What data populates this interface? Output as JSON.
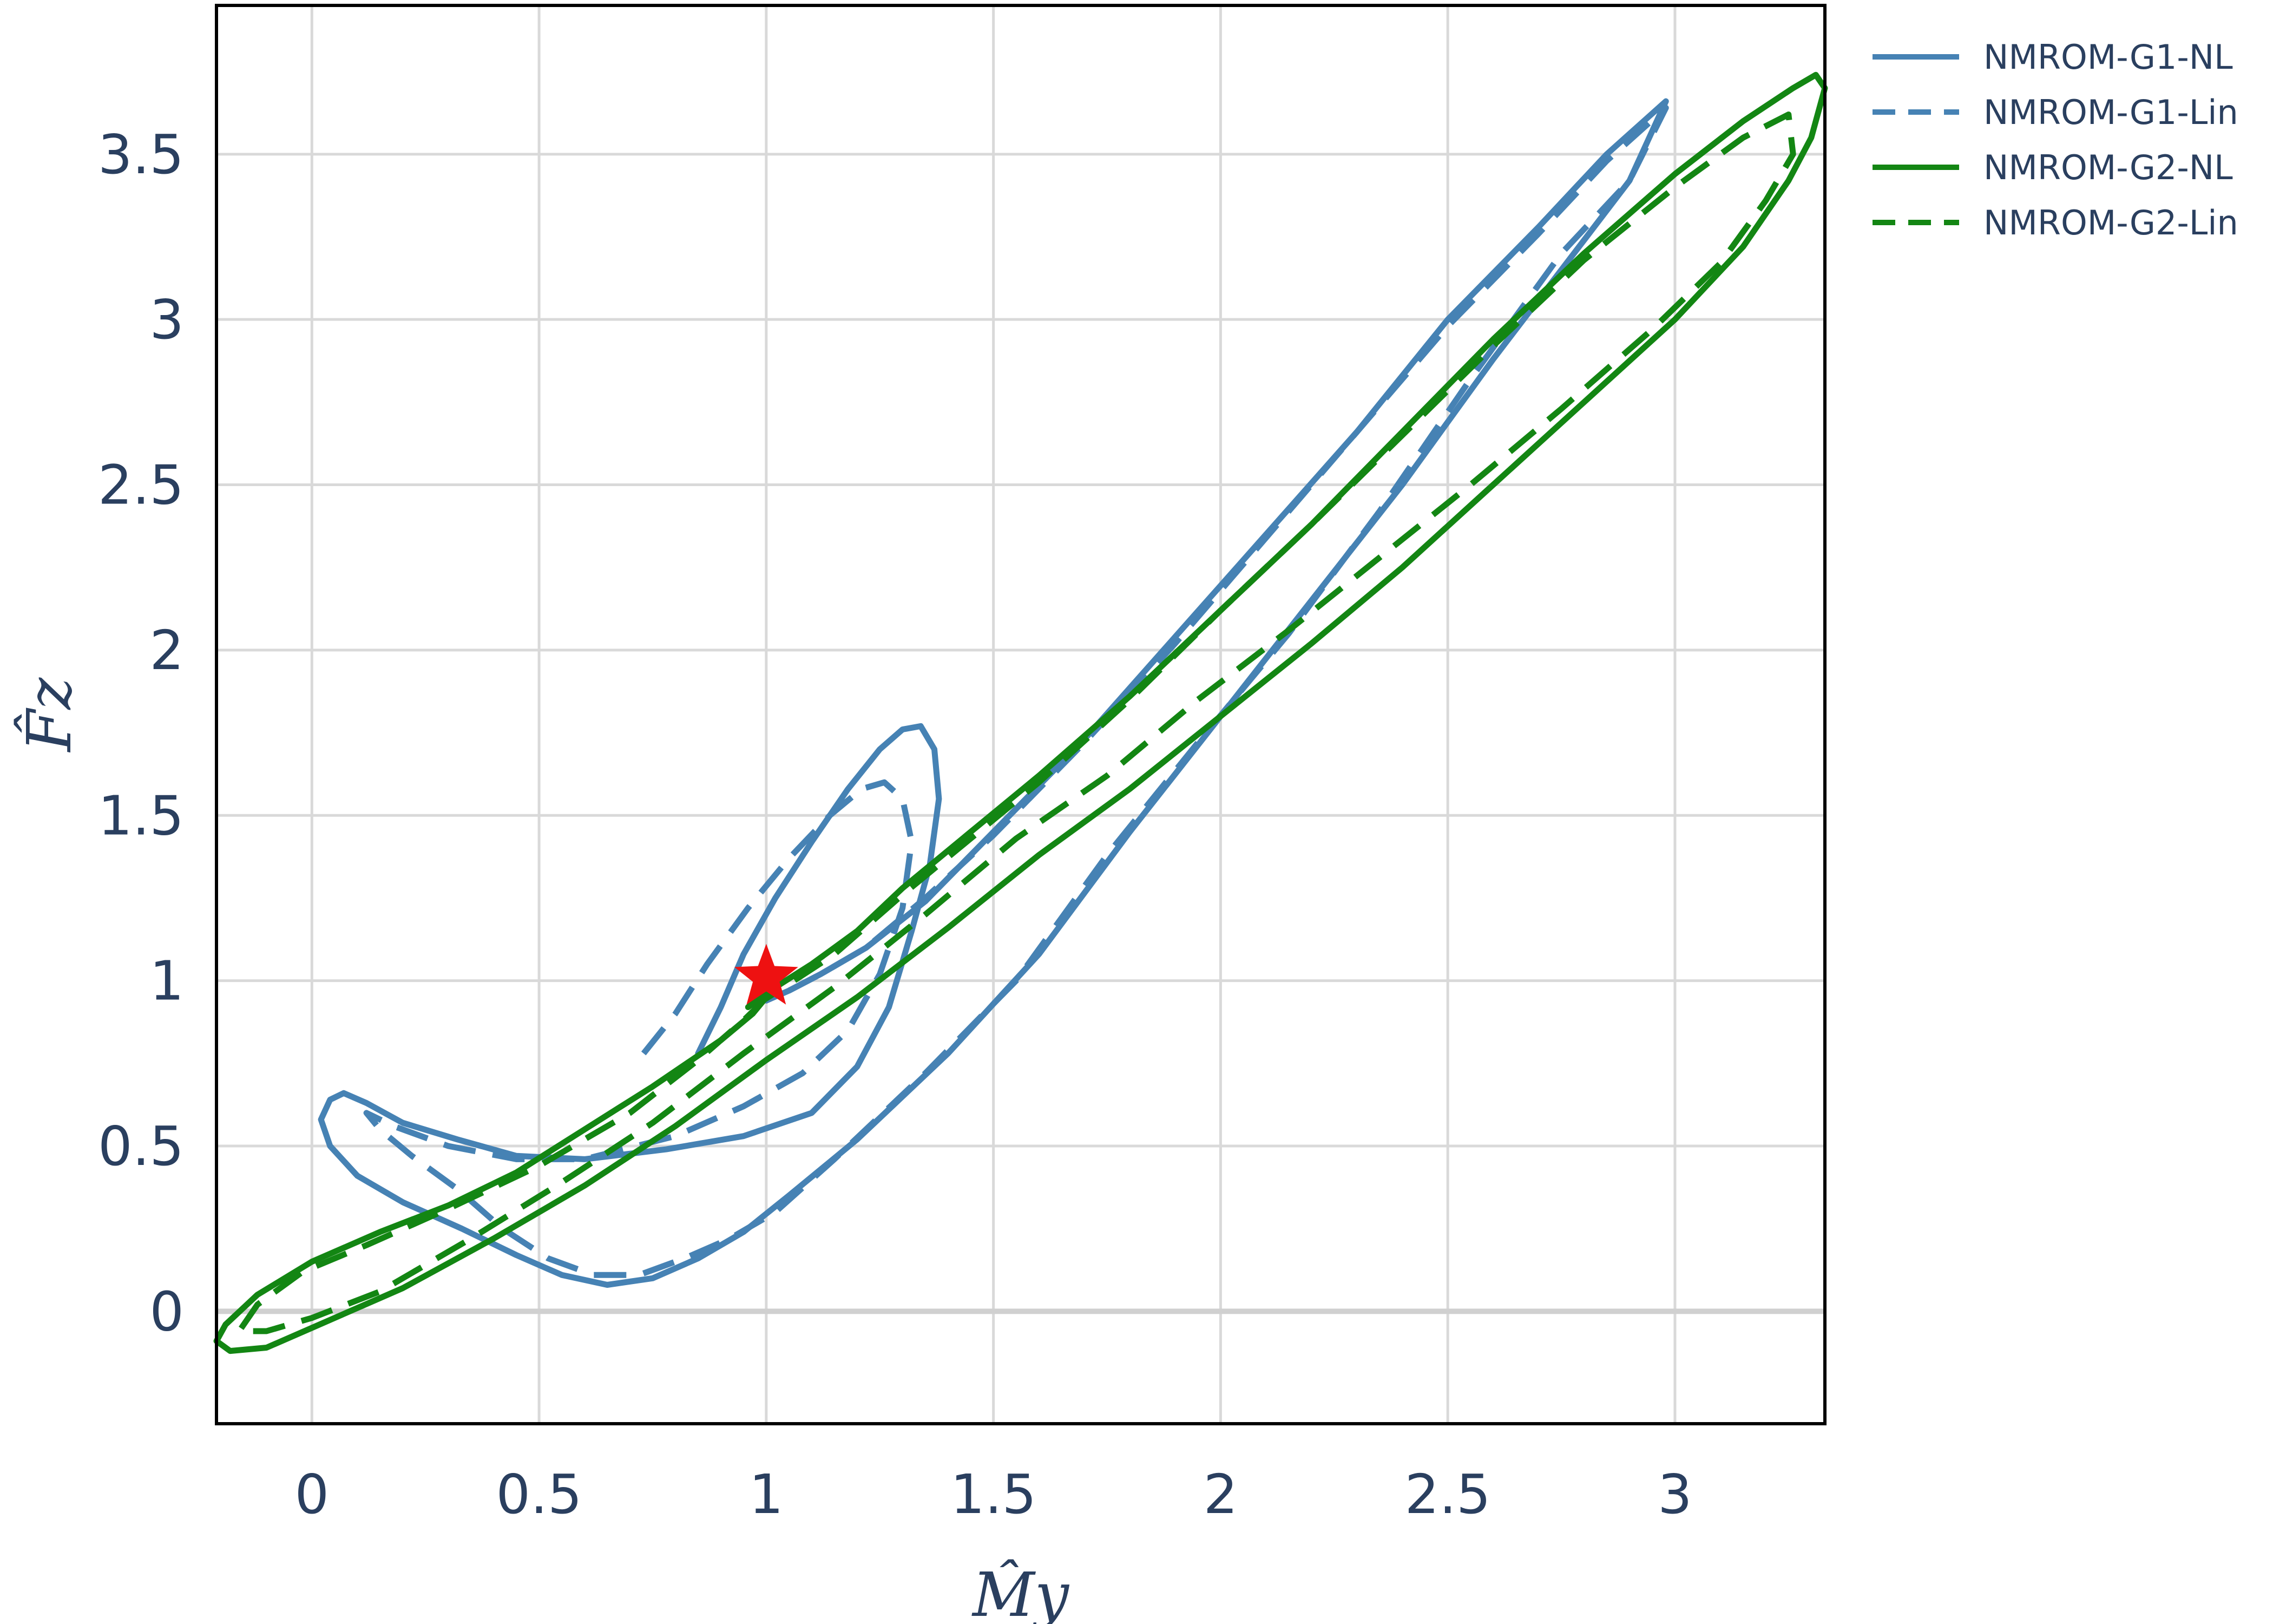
{
  "chart_data": {
    "type": "line",
    "xlabel": "M̂y",
    "ylabel": "F̂z",
    "xlim": [
      -0.21,
      3.33
    ],
    "ylim": [
      -0.34,
      3.95
    ],
    "x_ticks": [
      0,
      0.5,
      1,
      1.5,
      2,
      2.5,
      3
    ],
    "x_tick_labels": [
      "0",
      "0.5",
      "1",
      "1.5",
      "2",
      "2.5",
      "3"
    ],
    "y_ticks": [
      0,
      0.5,
      1,
      1.5,
      2,
      2.5,
      3,
      3.5
    ],
    "y_tick_labels": [
      "0",
      "0.5",
      "1",
      "1.5",
      "2",
      "2.5",
      "3",
      "3.5"
    ],
    "grid": true,
    "legend_position": "top-right, outside plot",
    "marker": {
      "x": 1.0,
      "y": 1.01,
      "shape": "star",
      "color": "#ee1111"
    },
    "series": [
      {
        "name": "NMROM-G1-NL",
        "color": "#4682b4",
        "dash": "solid",
        "points": [
          [
            0.85,
            0.78
          ],
          [
            0.9,
            0.92
          ],
          [
            0.95,
            1.08
          ],
          [
            1.02,
            1.25
          ],
          [
            1.1,
            1.42
          ],
          [
            1.18,
            1.58
          ],
          [
            1.25,
            1.7
          ],
          [
            1.3,
            1.76
          ],
          [
            1.34,
            1.77
          ],
          [
            1.37,
            1.7
          ],
          [
            1.38,
            1.55
          ],
          [
            1.36,
            1.35
          ],
          [
            1.32,
            1.15
          ],
          [
            1.27,
            0.92
          ],
          [
            1.2,
            0.74
          ],
          [
            1.1,
            0.6
          ],
          [
            0.95,
            0.53
          ],
          [
            0.78,
            0.49
          ],
          [
            0.6,
            0.46
          ],
          [
            0.45,
            0.47
          ],
          [
            0.32,
            0.52
          ],
          [
            0.2,
            0.57
          ],
          [
            0.12,
            0.63
          ],
          [
            0.07,
            0.66
          ],
          [
            0.04,
            0.64
          ],
          [
            0.02,
            0.58
          ],
          [
            0.04,
            0.5
          ],
          [
            0.1,
            0.41
          ],
          [
            0.2,
            0.33
          ],
          [
            0.33,
            0.25
          ],
          [
            0.45,
            0.17
          ],
          [
            0.55,
            0.11
          ],
          [
            0.65,
            0.08
          ],
          [
            0.75,
            0.1
          ],
          [
            0.85,
            0.16
          ],
          [
            0.95,
            0.24
          ],
          [
            1.05,
            0.35
          ],
          [
            1.2,
            0.52
          ],
          [
            1.4,
            0.78
          ],
          [
            1.6,
            1.08
          ],
          [
            1.8,
            1.45
          ],
          [
            2.0,
            1.8
          ],
          [
            2.2,
            2.15
          ],
          [
            2.4,
            2.5
          ],
          [
            2.6,
            2.88
          ],
          [
            2.8,
            3.24
          ],
          [
            2.9,
            3.42
          ],
          [
            2.98,
            3.66
          ],
          [
            2.85,
            3.5
          ],
          [
            2.7,
            3.28
          ],
          [
            2.5,
            3.0
          ],
          [
            2.3,
            2.66
          ],
          [
            2.1,
            2.35
          ],
          [
            1.9,
            2.04
          ],
          [
            1.7,
            1.73
          ],
          [
            1.5,
            1.45
          ],
          [
            1.35,
            1.24
          ],
          [
            1.22,
            1.1
          ],
          [
            1.12,
            1.02
          ],
          [
            1.05,
            0.97
          ],
          [
            1.0,
            0.94
          ]
        ]
      },
      {
        "name": "NMROM-G1-Lin",
        "color": "#4682b4",
        "dash": "dashed",
        "points": [
          [
            0.73,
            0.78
          ],
          [
            0.8,
            0.9
          ],
          [
            0.87,
            1.05
          ],
          [
            0.96,
            1.22
          ],
          [
            1.05,
            1.37
          ],
          [
            1.14,
            1.5
          ],
          [
            1.21,
            1.58
          ],
          [
            1.26,
            1.6
          ],
          [
            1.3,
            1.55
          ],
          [
            1.32,
            1.42
          ],
          [
            1.3,
            1.22
          ],
          [
            1.25,
            1.02
          ],
          [
            1.18,
            0.85
          ],
          [
            1.08,
            0.72
          ],
          [
            0.95,
            0.62
          ],
          [
            0.8,
            0.53
          ],
          [
            0.6,
            0.46
          ],
          [
            0.45,
            0.46
          ],
          [
            0.3,
            0.5
          ],
          [
            0.18,
            0.56
          ],
          [
            0.12,
            0.6
          ],
          [
            0.15,
            0.55
          ],
          [
            0.22,
            0.47
          ],
          [
            0.32,
            0.37
          ],
          [
            0.42,
            0.25
          ],
          [
            0.52,
            0.16
          ],
          [
            0.62,
            0.11
          ],
          [
            0.72,
            0.11
          ],
          [
            0.82,
            0.16
          ],
          [
            0.92,
            0.22
          ],
          [
            1.02,
            0.3
          ],
          [
            1.15,
            0.46
          ],
          [
            1.35,
            0.72
          ],
          [
            1.55,
            1.0
          ],
          [
            1.75,
            1.38
          ],
          [
            1.95,
            1.72
          ],
          [
            2.15,
            2.05
          ],
          [
            2.35,
            2.42
          ],
          [
            2.55,
            2.82
          ],
          [
            2.75,
            3.2
          ],
          [
            2.9,
            3.42
          ],
          [
            2.98,
            3.64
          ],
          [
            2.85,
            3.48
          ],
          [
            2.7,
            3.26
          ],
          [
            2.5,
            2.98
          ],
          [
            2.3,
            2.66
          ],
          [
            2.1,
            2.34
          ],
          [
            1.9,
            2.02
          ],
          [
            1.7,
            1.72
          ],
          [
            1.5,
            1.44
          ],
          [
            1.35,
            1.25
          ],
          [
            1.22,
            1.1
          ],
          [
            1.12,
            1.02
          ],
          [
            1.05,
            0.97
          ]
        ]
      },
      {
        "name": "NMROM-G2-NL",
        "color": "#138613",
        "dash": "solid",
        "points": [
          [
            0.96,
            0.92
          ],
          [
            1.02,
            0.98
          ],
          [
            1.1,
            1.05
          ],
          [
            1.2,
            1.15
          ],
          [
            1.3,
            1.28
          ],
          [
            1.45,
            1.45
          ],
          [
            1.6,
            1.62
          ],
          [
            1.8,
            1.86
          ],
          [
            2.0,
            2.12
          ],
          [
            2.2,
            2.38
          ],
          [
            2.4,
            2.66
          ],
          [
            2.6,
            2.94
          ],
          [
            2.8,
            3.2
          ],
          [
            3.0,
            3.44
          ],
          [
            3.15,
            3.6
          ],
          [
            3.26,
            3.7
          ],
          [
            3.31,
            3.74
          ],
          [
            3.33,
            3.7
          ],
          [
            3.3,
            3.55
          ],
          [
            3.25,
            3.42
          ],
          [
            3.15,
            3.22
          ],
          [
            3.0,
            3.0
          ],
          [
            2.8,
            2.75
          ],
          [
            2.6,
            2.5
          ],
          [
            2.4,
            2.25
          ],
          [
            2.2,
            2.02
          ],
          [
            2.0,
            1.8
          ],
          [
            1.8,
            1.58
          ],
          [
            1.6,
            1.38
          ],
          [
            1.4,
            1.16
          ],
          [
            1.2,
            0.95
          ],
          [
            1.0,
            0.76
          ],
          [
            0.8,
            0.56
          ],
          [
            0.6,
            0.38
          ],
          [
            0.4,
            0.22
          ],
          [
            0.2,
            0.07
          ],
          [
            0.0,
            -0.05
          ],
          [
            -0.1,
            -0.11
          ],
          [
            -0.18,
            -0.12
          ],
          [
            -0.21,
            -0.09
          ],
          [
            -0.19,
            -0.04
          ],
          [
            -0.12,
            0.05
          ],
          [
            0.0,
            0.15
          ],
          [
            0.15,
            0.24
          ],
          [
            0.3,
            0.32
          ],
          [
            0.45,
            0.42
          ],
          [
            0.6,
            0.55
          ],
          [
            0.75,
            0.68
          ],
          [
            0.9,
            0.82
          ],
          [
            0.97,
            0.9
          ],
          [
            1.0,
            0.95
          ]
        ]
      },
      {
        "name": "NMROM-G2-Lin",
        "color": "#138613",
        "dash": "dashed",
        "points": [
          [
            0.97,
            0.92
          ],
          [
            1.05,
            0.99
          ],
          [
            1.15,
            1.08
          ],
          [
            1.3,
            1.26
          ],
          [
            1.45,
            1.43
          ],
          [
            1.6,
            1.6
          ],
          [
            1.8,
            1.85
          ],
          [
            2.0,
            2.12
          ],
          [
            2.2,
            2.38
          ],
          [
            2.4,
            2.65
          ],
          [
            2.6,
            2.92
          ],
          [
            2.8,
            3.18
          ],
          [
            3.0,
            3.4
          ],
          [
            3.15,
            3.55
          ],
          [
            3.25,
            3.62
          ],
          [
            3.26,
            3.5
          ],
          [
            3.2,
            3.36
          ],
          [
            3.1,
            3.17
          ],
          [
            2.95,
            2.97
          ],
          [
            2.75,
            2.73
          ],
          [
            2.55,
            2.5
          ],
          [
            2.35,
            2.28
          ],
          [
            2.15,
            2.06
          ],
          [
            1.95,
            1.85
          ],
          [
            1.75,
            1.62
          ],
          [
            1.55,
            1.43
          ],
          [
            1.35,
            1.2
          ],
          [
            1.15,
            0.98
          ],
          [
            0.95,
            0.78
          ],
          [
            0.75,
            0.57
          ],
          [
            0.55,
            0.39
          ],
          [
            0.35,
            0.22
          ],
          [
            0.15,
            0.06
          ],
          [
            0.0,
            -0.02
          ],
          [
            -0.1,
            -0.06
          ],
          [
            -0.16,
            -0.06
          ],
          [
            -0.12,
            0.02
          ],
          [
            -0.02,
            0.12
          ],
          [
            0.12,
            0.2
          ],
          [
            0.3,
            0.31
          ],
          [
            0.5,
            0.44
          ],
          [
            0.7,
            0.6
          ],
          [
            0.85,
            0.76
          ],
          [
            0.95,
            0.88
          ],
          [
            0.98,
            0.92
          ]
        ]
      }
    ]
  }
}
